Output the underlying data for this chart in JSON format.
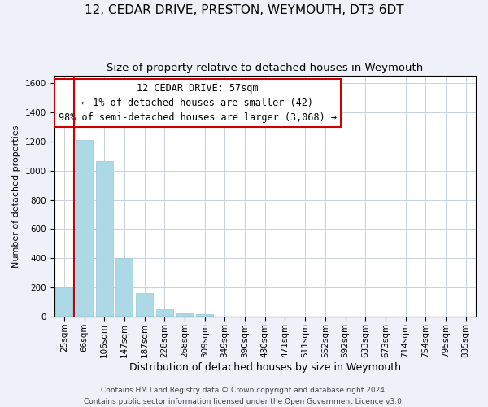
{
  "title": "12, CEDAR DRIVE, PRESTON, WEYMOUTH, DT3 6DT",
  "subtitle": "Size of property relative to detached houses in Weymouth",
  "xlabel": "Distribution of detached houses by size in Weymouth",
  "ylabel": "Number of detached properties",
  "footer_line1": "Contains HM Land Registry data © Crown copyright and database right 2024.",
  "footer_line2": "Contains public sector information licensed under the Open Government Licence v3.0.",
  "bar_labels": [
    "25sqm",
    "66sqm",
    "106sqm",
    "147sqm",
    "187sqm",
    "228sqm",
    "268sqm",
    "309sqm",
    "349sqm",
    "390sqm",
    "430sqm",
    "471sqm",
    "511sqm",
    "552sqm",
    "592sqm",
    "633sqm",
    "673sqm",
    "714sqm",
    "754sqm",
    "795sqm",
    "835sqm"
  ],
  "bar_values": [
    200,
    1210,
    1065,
    400,
    160,
    58,
    25,
    15,
    0,
    0,
    0,
    0,
    0,
    0,
    0,
    0,
    0,
    0,
    0,
    0,
    0
  ],
  "bar_color": "#add8e6",
  "bar_edge_color": "#9ecfdf",
  "red_line_x": 0.5,
  "annotation_line1": "12 CEDAR DRIVE: 57sqm",
  "annotation_line2": "← 1% of detached houses are smaller (42)",
  "annotation_line3": "98% of semi-detached houses are larger (3,068) →",
  "ylim": [
    0,
    1650
  ],
  "yticks": [
    0,
    200,
    400,
    600,
    800,
    1000,
    1200,
    1400,
    1600
  ],
  "red_line_color": "#cc0000",
  "annotation_box_facecolor": "white",
  "annotation_box_edgecolor": "#cc0000",
  "background_color": "#eef2f8",
  "plot_background": "white",
  "grid_color": "#c8d0dc",
  "title_fontsize": 11,
  "subtitle_fontsize": 9.5,
  "xlabel_fontsize": 9,
  "ylabel_fontsize": 8,
  "tick_fontsize": 7.5,
  "annotation_fontsize": 8.5,
  "footer_fontsize": 6.5
}
